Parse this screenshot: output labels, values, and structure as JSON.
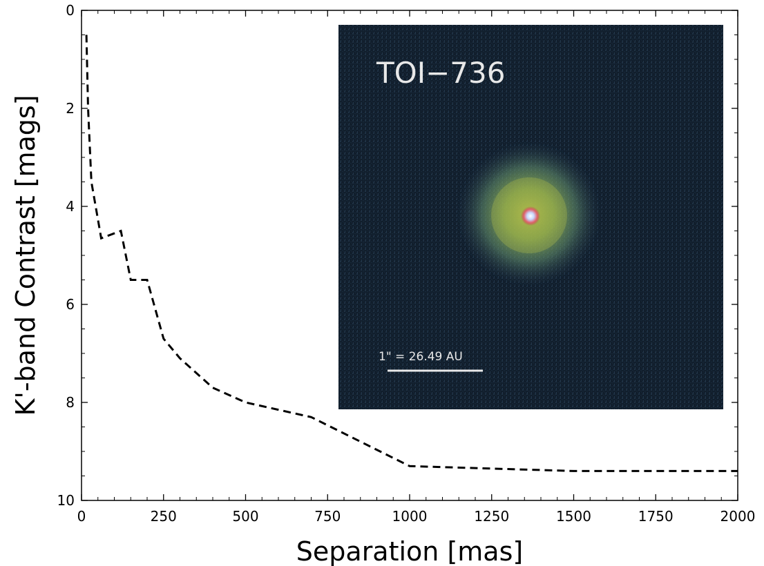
{
  "chart_data": {
    "type": "line",
    "title": "",
    "xlabel": "Separation [mas]",
    "ylabel": "K'-band Contrast [mags]",
    "xlim": [
      0,
      2000
    ],
    "ylim": [
      10,
      0
    ],
    "y_inverted": true,
    "x_ticks": [
      0,
      250,
      500,
      750,
      1000,
      1250,
      1500,
      1750,
      2000
    ],
    "y_ticks": [
      0,
      2,
      4,
      6,
      8,
      10
    ],
    "grid": false,
    "series": [
      {
        "line_style": "dashed",
        "color": "#000000",
        "x": [
          15,
          20,
          30,
          60,
          120,
          150,
          200,
          250,
          300,
          400,
          500,
          700,
          1000,
          1500,
          2000
        ],
        "y": [
          0.5,
          2.0,
          3.5,
          4.65,
          4.5,
          5.5,
          5.5,
          6.7,
          7.1,
          7.7,
          8.0,
          8.3,
          9.3,
          9.4,
          9.4
        ]
      }
    ],
    "inset_image": {
      "title": "TOI−736",
      "scale_label": "1\" = 26.49 AU"
    }
  }
}
